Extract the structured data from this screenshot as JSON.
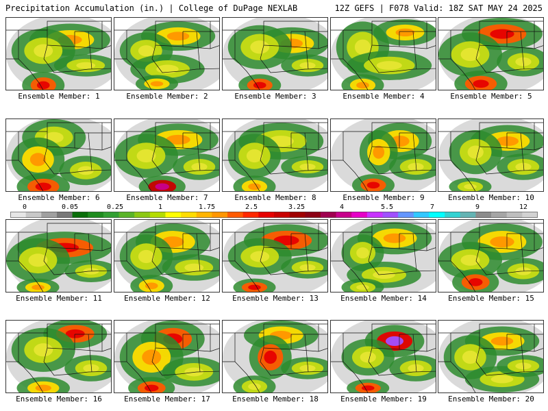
{
  "header": {
    "left": "Precipitation Accumulation (in.) | College of DuPage NEXLAB",
    "right": "12Z GEFS | F078 Valid: 18Z SAT MAY 24 2025"
  },
  "panels": [
    {
      "caption": "Ensemble Member: 1",
      "blobs": [
        [
          0.6,
          0.3,
          0.38,
          0.22,
          2
        ],
        [
          0.35,
          0.45,
          0.3,
          0.3,
          1
        ],
        [
          0.35,
          0.92,
          0.2,
          0.18,
          3
        ],
        [
          0.75,
          0.65,
          0.3,
          0.15,
          1
        ]
      ]
    },
    {
      "caption": "Ensemble Member: 2",
      "blobs": [
        [
          0.6,
          0.25,
          0.35,
          0.2,
          2
        ],
        [
          0.3,
          0.45,
          0.25,
          0.25,
          1
        ],
        [
          0.5,
          0.7,
          0.35,
          0.2,
          1
        ],
        [
          0.4,
          0.9,
          0.2,
          0.12,
          2
        ]
      ]
    },
    {
      "caption": "Ensemble Member: 3",
      "blobs": [
        [
          0.65,
          0.35,
          0.35,
          0.22,
          2
        ],
        [
          0.35,
          0.4,
          0.3,
          0.3,
          1
        ],
        [
          0.35,
          0.92,
          0.2,
          0.15,
          3
        ],
        [
          0.8,
          0.65,
          0.25,
          0.15,
          1
        ]
      ]
    },
    {
      "caption": "Ensemble Member: 4",
      "blobs": [
        [
          0.7,
          0.2,
          0.3,
          0.18,
          2
        ],
        [
          0.3,
          0.4,
          0.25,
          0.35,
          1
        ],
        [
          0.55,
          0.65,
          0.4,
          0.2,
          1
        ],
        [
          0.3,
          0.92,
          0.2,
          0.15,
          2
        ]
      ]
    },
    {
      "caption": "Ensemble Member: 5",
      "blobs": [
        [
          0.6,
          0.22,
          0.38,
          0.22,
          3
        ],
        [
          0.3,
          0.5,
          0.3,
          0.3,
          1
        ],
        [
          0.4,
          0.9,
          0.25,
          0.18,
          3
        ],
        [
          0.8,
          0.6,
          0.25,
          0.2,
          1
        ]
      ]
    },
    {
      "caption": "Ensemble Member: 6",
      "blobs": [
        [
          0.45,
          0.25,
          0.3,
          0.25,
          1
        ],
        [
          0.3,
          0.55,
          0.25,
          0.3,
          2
        ],
        [
          0.35,
          0.92,
          0.25,
          0.18,
          3
        ],
        [
          0.75,
          0.7,
          0.25,
          0.2,
          1
        ]
      ]
    },
    {
      "caption": "Ensemble Member: 7",
      "blobs": [
        [
          0.6,
          0.28,
          0.38,
          0.22,
          2
        ],
        [
          0.3,
          0.5,
          0.3,
          0.3,
          1
        ],
        [
          0.45,
          0.92,
          0.22,
          0.15,
          4
        ],
        [
          0.8,
          0.65,
          0.25,
          0.18,
          1
        ]
      ]
    },
    {
      "caption": "Ensemble Member: 8",
      "blobs": [
        [
          0.55,
          0.3,
          0.4,
          0.25,
          1
        ],
        [
          0.3,
          0.5,
          0.25,
          0.3,
          1
        ],
        [
          0.3,
          0.92,
          0.2,
          0.15,
          2
        ],
        [
          0.8,
          0.65,
          0.25,
          0.15,
          1
        ]
      ]
    },
    {
      "caption": "Ensemble Member: 9",
      "blobs": [
        [
          0.65,
          0.3,
          0.3,
          0.25,
          2
        ],
        [
          0.45,
          0.45,
          0.18,
          0.3,
          2
        ],
        [
          0.4,
          0.9,
          0.2,
          0.15,
          3
        ],
        [
          0.8,
          0.65,
          0.25,
          0.18,
          1
        ]
      ]
    },
    {
      "caption": "Ensemble Member: 10",
      "blobs": [
        [
          0.65,
          0.3,
          0.35,
          0.22,
          2
        ],
        [
          0.35,
          0.45,
          0.25,
          0.3,
          1
        ],
        [
          0.3,
          0.92,
          0.2,
          0.12,
          1
        ],
        [
          0.8,
          0.65,
          0.25,
          0.18,
          1
        ]
      ]
    },
    {
      "caption": "Ensemble Member: 11",
      "blobs": [
        [
          0.55,
          0.38,
          0.45,
          0.22,
          3
        ],
        [
          0.3,
          0.55,
          0.3,
          0.3,
          1
        ],
        [
          0.3,
          0.92,
          0.2,
          0.12,
          2
        ],
        [
          0.8,
          0.7,
          0.25,
          0.15,
          1
        ]
      ]
    },
    {
      "caption": "Ensemble Member: 12",
      "blobs": [
        [
          0.55,
          0.3,
          0.35,
          0.25,
          2
        ],
        [
          0.3,
          0.5,
          0.25,
          0.3,
          1
        ],
        [
          0.35,
          0.9,
          0.2,
          0.15,
          2
        ],
        [
          0.75,
          0.65,
          0.3,
          0.18,
          1
        ]
      ]
    },
    {
      "caption": "Ensemble Member: 13",
      "blobs": [
        [
          0.6,
          0.28,
          0.4,
          0.22,
          3
        ],
        [
          0.35,
          0.5,
          0.3,
          0.25,
          1
        ],
        [
          0.3,
          0.92,
          0.2,
          0.12,
          3
        ],
        [
          0.8,
          0.65,
          0.25,
          0.15,
          1
        ]
      ]
    },
    {
      "caption": "Ensemble Member: 14",
      "blobs": [
        [
          0.6,
          0.25,
          0.35,
          0.22,
          2
        ],
        [
          0.3,
          0.45,
          0.2,
          0.25,
          1
        ],
        [
          0.5,
          0.75,
          0.35,
          0.18,
          1
        ],
        [
          0.3,
          0.92,
          0.2,
          0.12,
          1
        ]
      ]
    },
    {
      "caption": "Ensemble Member: 15",
      "blobs": [
        [
          0.6,
          0.3,
          0.38,
          0.25,
          2
        ],
        [
          0.3,
          0.55,
          0.3,
          0.25,
          1
        ],
        [
          0.35,
          0.85,
          0.22,
          0.18,
          3
        ],
        [
          0.8,
          0.7,
          0.25,
          0.18,
          1
        ]
      ]
    },
    {
      "caption": "Ensemble Member: 16",
      "blobs": [
        [
          0.65,
          0.18,
          0.3,
          0.2,
          3
        ],
        [
          0.35,
          0.4,
          0.3,
          0.3,
          1
        ],
        [
          0.35,
          0.92,
          0.25,
          0.15,
          2
        ],
        [
          0.8,
          0.65,
          0.25,
          0.18,
          1
        ]
      ]
    },
    {
      "caption": "Ensemble Member: 17",
      "blobs": [
        [
          0.55,
          0.25,
          0.3,
          0.25,
          3
        ],
        [
          0.35,
          0.5,
          0.3,
          0.35,
          2
        ],
        [
          0.35,
          0.92,
          0.22,
          0.15,
          3
        ],
        [
          0.75,
          0.7,
          0.3,
          0.2,
          1
        ]
      ]
    },
    {
      "caption": "Ensemble Member: 18",
      "blobs": [
        [
          0.55,
          0.2,
          0.35,
          0.2,
          2
        ],
        [
          0.45,
          0.5,
          0.2,
          0.3,
          3
        ],
        [
          0.3,
          0.9,
          0.2,
          0.15,
          1
        ],
        [
          0.8,
          0.65,
          0.25,
          0.15,
          1
        ]
      ]
    },
    {
      "caption": "Ensemble Member: 19",
      "blobs": [
        [
          0.6,
          0.28,
          0.28,
          0.22,
          5
        ],
        [
          0.35,
          0.5,
          0.25,
          0.25,
          1
        ],
        [
          0.35,
          0.92,
          0.2,
          0.12,
          3
        ],
        [
          0.8,
          0.65,
          0.25,
          0.18,
          1
        ]
      ]
    },
    {
      "caption": "Ensemble Member: 20",
      "blobs": [
        [
          0.6,
          0.28,
          0.35,
          0.2,
          2
        ],
        [
          0.3,
          0.5,
          0.25,
          0.3,
          1
        ],
        [
          0.6,
          0.8,
          0.35,
          0.18,
          1
        ],
        [
          0.8,
          0.62,
          0.25,
          0.15,
          1
        ]
      ]
    }
  ],
  "colorbar": {
    "labels": [
      "0",
      "0.05",
      "0.25",
      "1",
      "1.75",
      "2.5",
      "3.25",
      "4",
      "5.5",
      "7",
      "9",
      "12"
    ],
    "colors": [
      "#e6e6e6",
      "#c8c8c8",
      "#a0a0a0",
      "#787878",
      "#0a6e0a",
      "#1e8c1e",
      "#32a032",
      "#5ab428",
      "#8cc814",
      "#b4dc00",
      "#ffff00",
      "#ffdc00",
      "#ffb400",
      "#ff9600",
      "#ff5a00",
      "#ff2800",
      "#e60000",
      "#c80000",
      "#a00000",
      "#8c0014",
      "#a00050",
      "#c8008c",
      "#e600c8",
      "#c832ff",
      "#a050ff",
      "#6496ff",
      "#32c8ff",
      "#00ffff",
      "#32d2d2",
      "#64b4b4",
      "#8c8c8c",
      "#a5a5a5",
      "#bebebe",
      "#d2d2d2"
    ]
  }
}
